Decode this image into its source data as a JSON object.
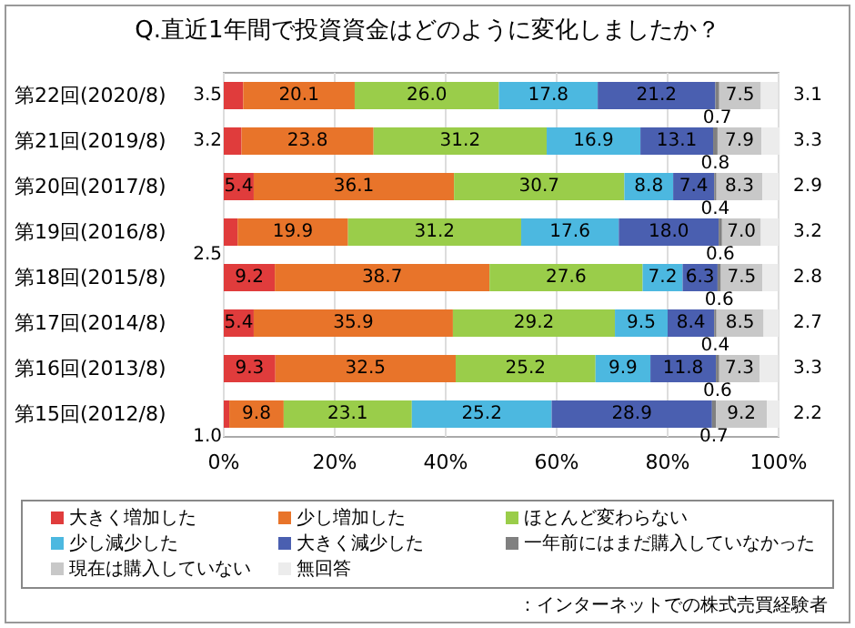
{
  "chart_data": {
    "type": "bar",
    "orientation": "horizontal",
    "stacked": true,
    "grid": "x",
    "legend": "bottom",
    "title": "Q.直近1年間で投資資金はどのように変化しましたか？",
    "annotations": [
      "：インターネットでの株式売買経験者"
    ],
    "categories": [
      "第22回(2020/8)",
      "第21回(2019/8)",
      "第20回(2017/8)",
      "第19回(2016/8)",
      "第18回(2015/8)",
      "第17回(2014/8)",
      "第16回(2013/8)",
      "第15回(2012/8)"
    ],
    "xlim": [
      0,
      100
    ],
    "xticks": [
      {
        "value": 0,
        "label": "0%"
      },
      {
        "value": 20,
        "label": "20%"
      },
      {
        "value": 40,
        "label": "40%"
      },
      {
        "value": 60,
        "label": "60%"
      },
      {
        "value": 80,
        "label": "80%"
      },
      {
        "value": 100,
        "label": "100%"
      }
    ],
    "series": [
      {
        "name": "大きく増加した",
        "color": "#e03c3c",
        "values": [
          3.5,
          3.2,
          5.4,
          2.5,
          9.2,
          5.4,
          9.3,
          1.0
        ],
        "value_labels": [
          "3.5",
          "3.2",
          "5.4",
          "2.5",
          "9.2",
          "5.4",
          "9.3",
          "1.0"
        ]
      },
      {
        "name": "少し増加した",
        "color": "#e8742a",
        "values": [
          20.1,
          23.8,
          36.1,
          19.9,
          38.7,
          35.9,
          32.5,
          9.8
        ],
        "value_labels": [
          "20.1",
          "23.8",
          "36.1",
          "19.9",
          "38.7",
          "35.9",
          "32.5",
          "9.8"
        ]
      },
      {
        "name": "ほとんど変わらない",
        "color": "#9acd4a",
        "values": [
          26.0,
          31.2,
          30.7,
          31.2,
          27.6,
          29.2,
          25.2,
          23.1
        ],
        "value_labels": [
          "26.0",
          "31.2",
          "30.7",
          "31.2",
          "27.6",
          "29.2",
          "25.2",
          "23.1"
        ]
      },
      {
        "name": "少し減少した",
        "color": "#4cb8e0",
        "values": [
          17.8,
          16.9,
          8.8,
          17.6,
          7.2,
          9.5,
          9.9,
          25.2
        ],
        "value_labels": [
          "17.8",
          "16.9",
          "8.8",
          "17.6",
          "7.2",
          "9.5",
          "9.9",
          "25.2"
        ]
      },
      {
        "name": "大きく減少した",
        "color": "#4a5fb0",
        "values": [
          21.2,
          13.1,
          7.4,
          18.0,
          6.3,
          8.4,
          11.8,
          28.9
        ],
        "value_labels": [
          "21.2",
          "13.1",
          "7.4",
          "18.0",
          "6.3",
          "8.4",
          "11.8",
          "28.9"
        ]
      },
      {
        "name": "一年前にはまだ購入していなかった",
        "color": "#808080",
        "values": [
          0.7,
          0.8,
          0.4,
          0.6,
          0.6,
          0.4,
          0.6,
          0.7
        ],
        "value_labels": [
          "0.7",
          "0.8",
          "0.4",
          "0.6",
          "0.6",
          "0.4",
          "0.6",
          "0.7"
        ]
      },
      {
        "name": "現在は購入していない",
        "color": "#c8c8c8",
        "values": [
          7.5,
          7.9,
          8.3,
          7.0,
          7.5,
          8.5,
          7.3,
          9.2
        ],
        "value_labels": [
          "7.5",
          "7.9",
          "8.3",
          "7.0",
          "7.5",
          "8.5",
          "7.3",
          "9.2"
        ]
      },
      {
        "name": "無回答",
        "color": "#ececec",
        "values": [
          3.1,
          3.3,
          2.9,
          3.2,
          2.8,
          2.7,
          3.3,
          2.2
        ],
        "value_labels": [
          "3.1",
          "3.3",
          "2.9",
          "3.2",
          "2.8",
          "2.7",
          "3.3",
          "2.2"
        ]
      }
    ]
  }
}
